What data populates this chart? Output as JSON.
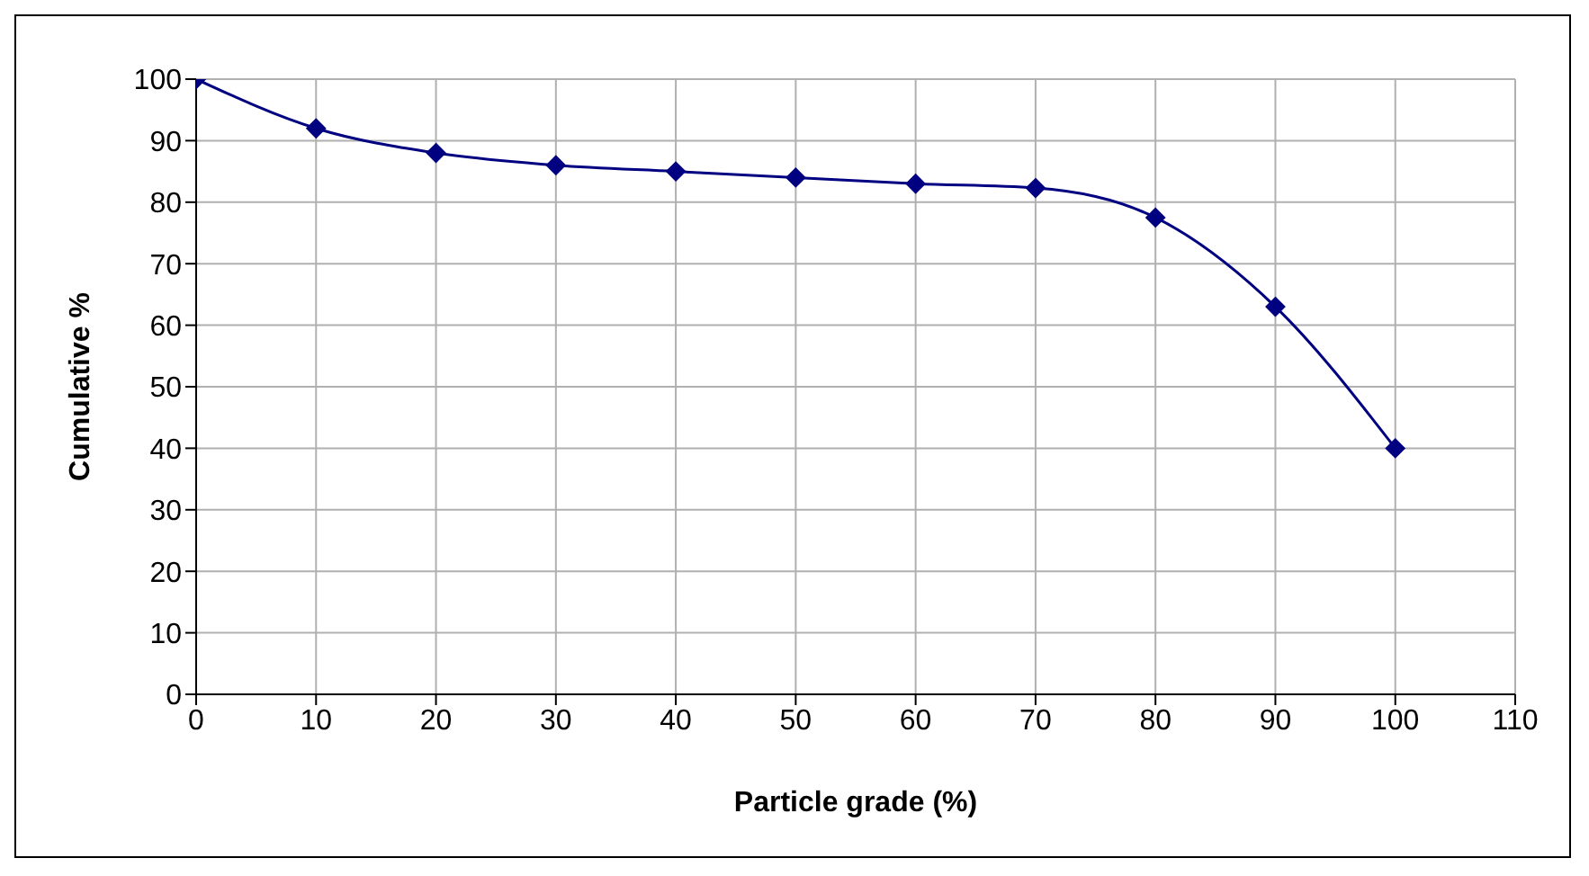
{
  "chart_data": {
    "type": "line",
    "xlabel": "Particle grade (%)",
    "ylabel": "Cumulative %",
    "x": [
      0,
      10,
      20,
      30,
      40,
      50,
      60,
      70,
      80,
      90,
      100
    ],
    "series": [
      {
        "color": "#000080",
        "values": [
          100,
          92,
          88,
          86,
          85,
          84,
          83,
          82.3,
          77.5,
          63,
          40
        ]
      }
    ],
    "xlim": [
      0,
      110
    ],
    "xticks": [
      0,
      10,
      20,
      30,
      40,
      50,
      60,
      70,
      80,
      90,
      100,
      110
    ],
    "ylim": [
      0,
      100
    ],
    "yticks": [
      0,
      10,
      20,
      30,
      40,
      50,
      60,
      70,
      80,
      90,
      100
    ],
    "grid": true,
    "legend": false,
    "marker": "diamond",
    "line_style": "solid"
  }
}
